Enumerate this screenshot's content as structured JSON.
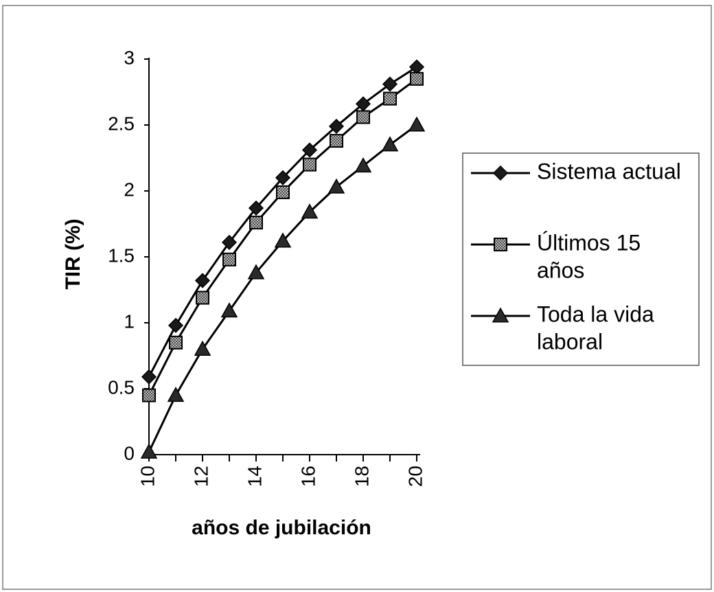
{
  "chart_data": {
    "type": "line",
    "title": "",
    "xlabel": "años de jubilación",
    "ylabel": "TIR (%)",
    "x": [
      10,
      11,
      12,
      13,
      14,
      15,
      16,
      17,
      18,
      19,
      20
    ],
    "x_tick_labels": [
      "10",
      "12",
      "14",
      "16",
      "18",
      "20"
    ],
    "x_tick_values": [
      10,
      12,
      14,
      16,
      18,
      20
    ],
    "xlim": [
      10,
      20
    ],
    "ylim": [
      0,
      3
    ],
    "y_tick_labels": [
      "0",
      "0.5",
      "1",
      "1.5",
      "2",
      "2.5",
      "3"
    ],
    "y_tick_values": [
      0,
      0.5,
      1,
      1.5,
      2,
      2.5,
      3
    ],
    "grid": false,
    "legend_position": "right",
    "series": [
      {
        "name_lines": [
          "Sistema actual"
        ],
        "marker": "diamond",
        "values": [
          0.59,
          0.98,
          1.32,
          1.61,
          1.87,
          2.1,
          2.31,
          2.49,
          2.66,
          2.81,
          2.94
        ]
      },
      {
        "name_lines": [
          "Últimos 15",
          "años"
        ],
        "marker": "square",
        "values": [
          0.45,
          0.85,
          1.19,
          1.48,
          1.76,
          1.99,
          2.2,
          2.38,
          2.56,
          2.7,
          2.85
        ]
      },
      {
        "name_lines": [
          "Toda la vida",
          "laboral"
        ],
        "marker": "triangle",
        "values": [
          0.02,
          0.45,
          0.8,
          1.09,
          1.38,
          1.62,
          1.84,
          2.03,
          2.19,
          2.35,
          2.5
        ]
      }
    ]
  }
}
